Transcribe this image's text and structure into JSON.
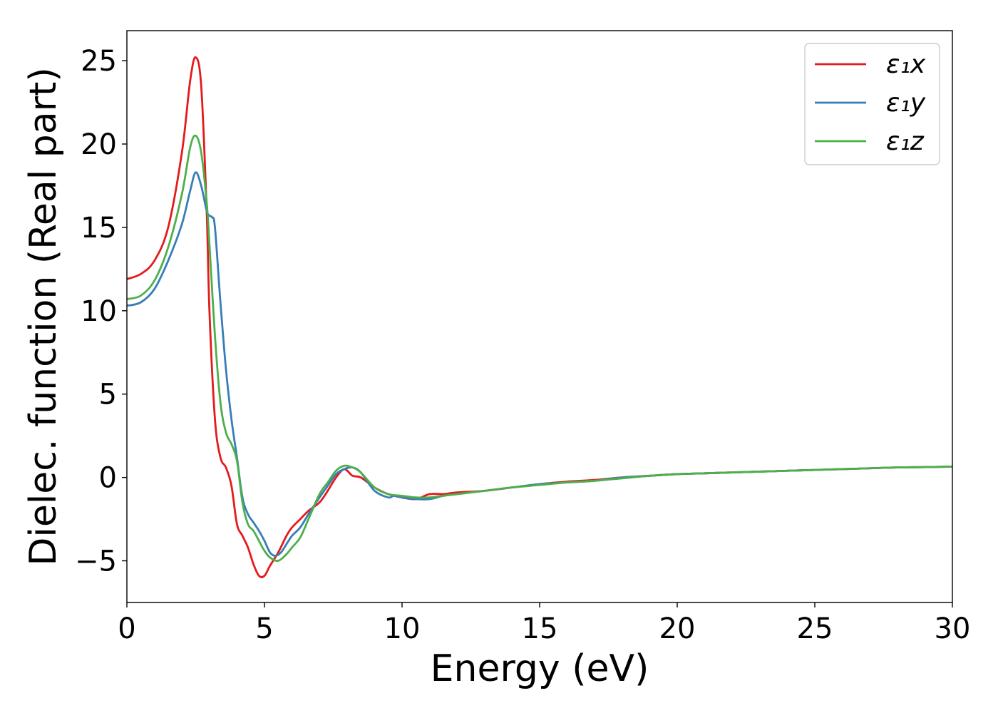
{
  "chart_data": {
    "type": "line",
    "xlabel": "Energy (eV)",
    "ylabel": "Dielec. function (Real part)",
    "xlim": [
      0,
      30
    ],
    "ylim": [
      -7.5,
      26.8
    ],
    "xticks": [
      0,
      5,
      10,
      15,
      20,
      25,
      30
    ],
    "yticks": [
      -5,
      0,
      5,
      10,
      15,
      20,
      25
    ],
    "xtick_labels": [
      "0",
      "5",
      "10",
      "15",
      "20",
      "25",
      "30"
    ],
    "ytick_labels": [
      "−5",
      "0",
      "5",
      "10",
      "15",
      "20",
      "25"
    ],
    "grid": false,
    "legend_position": "top-right",
    "series": [
      {
        "name": "ε₁x",
        "color": "#e41a1c",
        "x": [
          0,
          0.5,
          1.0,
          1.5,
          2.0,
          2.3,
          2.5,
          2.7,
          2.9,
          3.0,
          3.2,
          3.4,
          3.6,
          3.8,
          4.0,
          4.2,
          4.4,
          4.6,
          4.8,
          5.0,
          5.2,
          5.5,
          5.8,
          6.0,
          6.3,
          6.6,
          7.0,
          7.3,
          7.6,
          7.9,
          8.2,
          8.5,
          9.0,
          9.5,
          10.0,
          10.5,
          11.0,
          11.5,
          12.0,
          13.0,
          14.0,
          15.0,
          16.0,
          17.0,
          18.0,
          19.0,
          20.0,
          21.0,
          22.0,
          23.0,
          24.0,
          25.0,
          26.0,
          27.0,
          28.0,
          29.0,
          30.0
        ],
        "y": [
          11.9,
          12.2,
          13.0,
          15.0,
          19.5,
          23.8,
          25.2,
          23.5,
          16.0,
          10.0,
          3.5,
          1.2,
          0.6,
          -0.5,
          -2.8,
          -3.5,
          -4.2,
          -5.2,
          -5.9,
          -5.9,
          -5.3,
          -4.5,
          -3.5,
          -3.0,
          -2.5,
          -2.0,
          -1.5,
          -0.8,
          0.0,
          0.5,
          0.1,
          0.0,
          -0.6,
          -1.0,
          -1.2,
          -1.3,
          -1.0,
          -1.0,
          -0.9,
          -0.8,
          -0.6,
          -0.4,
          -0.25,
          -0.15,
          0.0,
          0.1,
          0.2,
          0.25,
          0.3,
          0.35,
          0.4,
          0.45,
          0.5,
          0.55,
          0.6,
          0.62,
          0.65
        ]
      },
      {
        "name": "ε₁y",
        "color": "#377eb8",
        "x": [
          0,
          0.5,
          1.0,
          1.5,
          2.0,
          2.3,
          2.5,
          2.7,
          2.9,
          3.0,
          3.1,
          3.2,
          3.4,
          3.6,
          3.8,
          4.0,
          4.2,
          4.4,
          4.6,
          4.8,
          5.0,
          5.2,
          5.4,
          5.6,
          5.8,
          6.0,
          6.3,
          6.6,
          7.0,
          7.3,
          7.6,
          7.9,
          8.2,
          8.5,
          9.0,
          9.5,
          9.7,
          10.0,
          10.5,
          11.0,
          11.5,
          12.0,
          13.0,
          14.0,
          15.0,
          16.0,
          17.0,
          18.0,
          19.0,
          20.0,
          21.0,
          22.0,
          23.0,
          24.0,
          25.0,
          26.0,
          27.0,
          28.0,
          29.0,
          30.0
        ],
        "y": [
          10.3,
          10.5,
          11.3,
          13.0,
          15.2,
          17.2,
          18.3,
          17.5,
          16.0,
          15.7,
          15.6,
          15.0,
          10.5,
          6.5,
          3.5,
          1.2,
          -1.2,
          -2.2,
          -2.7,
          -3.2,
          -3.8,
          -4.5,
          -4.7,
          -4.5,
          -4.0,
          -3.5,
          -3.0,
          -2.2,
          -1.2,
          -0.5,
          0.2,
          0.5,
          0.6,
          0.3,
          -0.8,
          -1.2,
          -1.1,
          -1.2,
          -1.3,
          -1.3,
          -1.1,
          -1.0,
          -0.8,
          -0.6,
          -0.4,
          -0.3,
          -0.2,
          0.0,
          0.1,
          0.2,
          0.25,
          0.3,
          0.35,
          0.4,
          0.45,
          0.5,
          0.55,
          0.6,
          0.62,
          0.65
        ]
      },
      {
        "name": "ε₁z",
        "color": "#4daf4a",
        "x": [
          0,
          0.5,
          1.0,
          1.5,
          2.0,
          2.3,
          2.5,
          2.7,
          2.9,
          3.0,
          3.2,
          3.4,
          3.6,
          3.8,
          4.0,
          4.2,
          4.4,
          4.6,
          4.8,
          5.0,
          5.2,
          5.5,
          5.8,
          6.0,
          6.3,
          6.6,
          7.0,
          7.3,
          7.6,
          7.9,
          8.2,
          8.5,
          9.0,
          9.5,
          10.0,
          10.5,
          11.0,
          11.5,
          12.0,
          13.0,
          14.0,
          15.0,
          16.0,
          17.0,
          18.0,
          19.0,
          20.0,
          21.0,
          22.0,
          23.0,
          24.0,
          25.0,
          26.0,
          27.0,
          28.0,
          29.0,
          30.0
        ],
        "y": [
          10.7,
          10.9,
          11.8,
          13.8,
          17.0,
          19.8,
          20.5,
          19.5,
          16.5,
          14.0,
          8.5,
          4.5,
          2.7,
          2.0,
          1.0,
          -1.5,
          -2.8,
          -3.2,
          -3.8,
          -4.4,
          -4.8,
          -5.0,
          -4.6,
          -4.2,
          -3.6,
          -2.5,
          -1.0,
          -0.3,
          0.4,
          0.7,
          0.6,
          0.3,
          -0.6,
          -1.0,
          -1.1,
          -1.2,
          -1.2,
          -1.1,
          -1.0,
          -0.8,
          -0.6,
          -0.45,
          -0.3,
          -0.2,
          -0.05,
          0.1,
          0.2,
          0.25,
          0.3,
          0.35,
          0.4,
          0.45,
          0.5,
          0.55,
          0.6,
          0.62,
          0.65
        ]
      }
    ]
  }
}
